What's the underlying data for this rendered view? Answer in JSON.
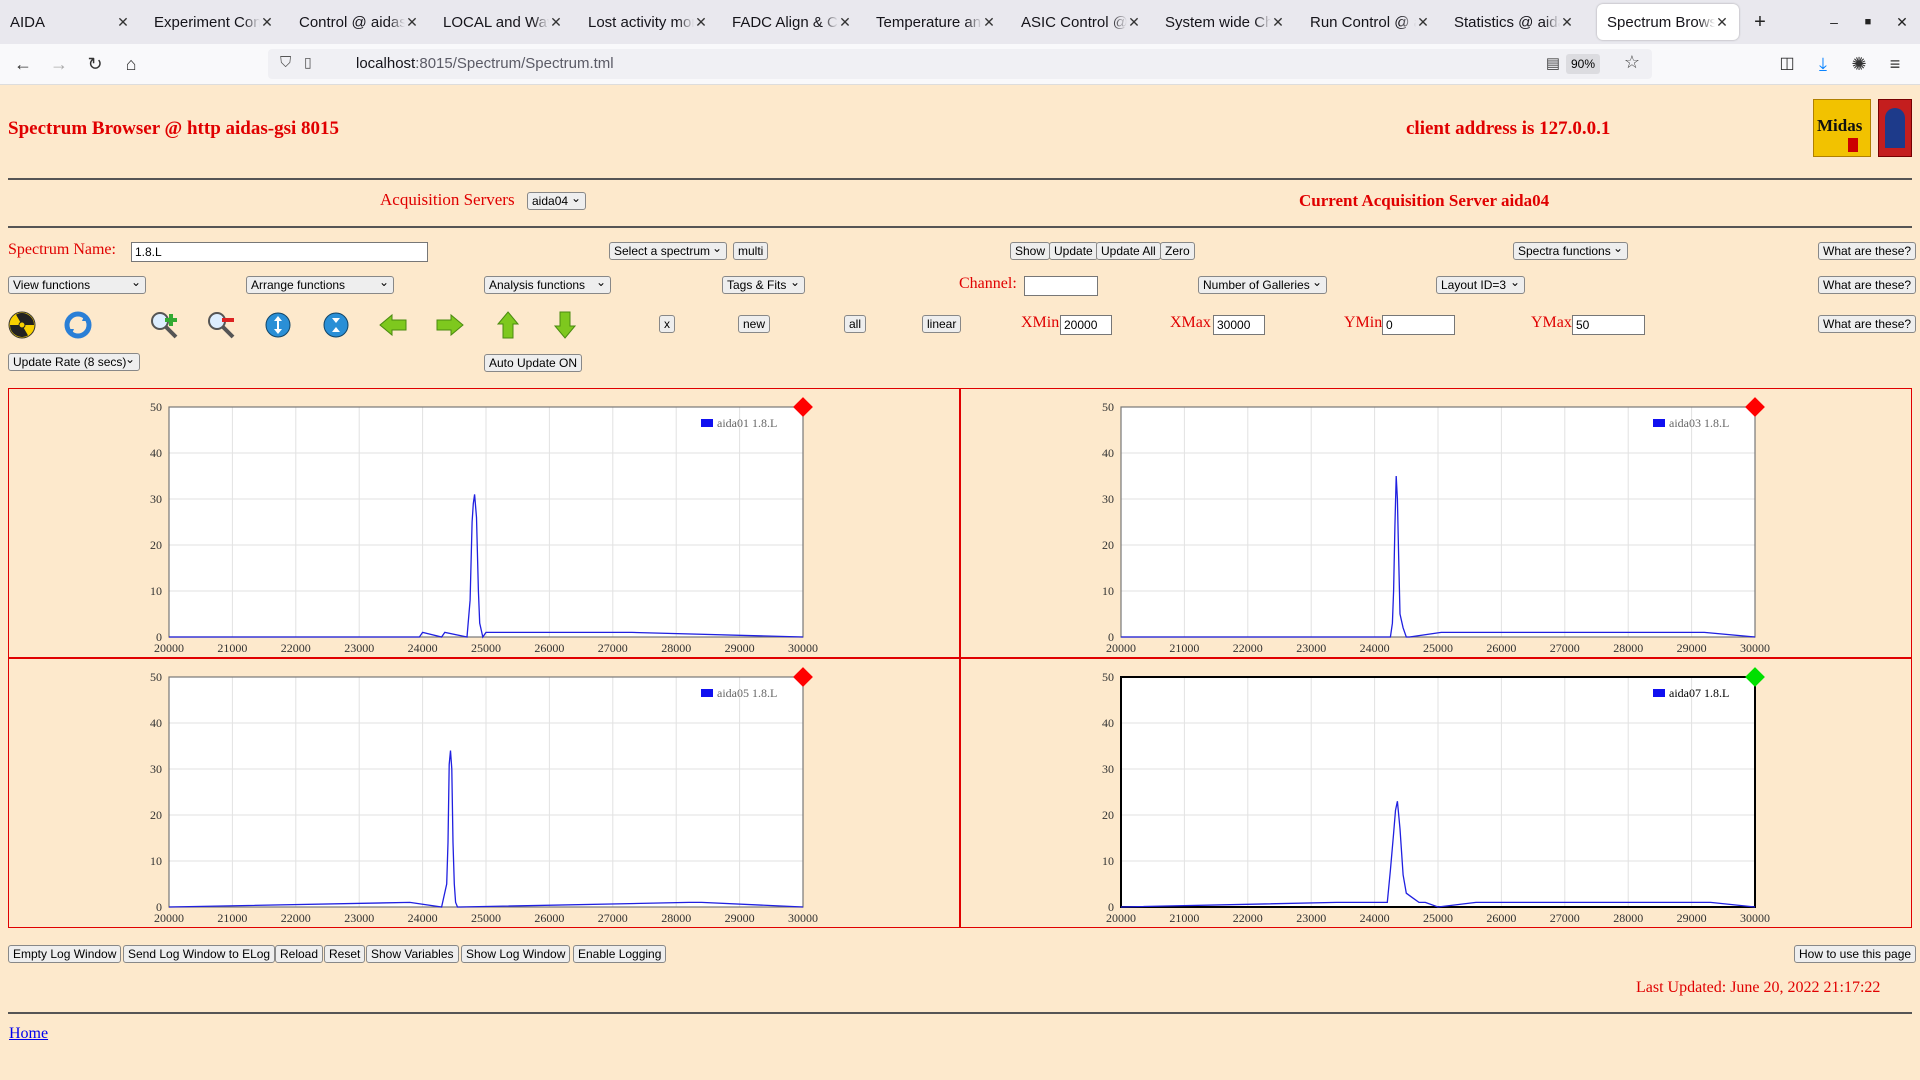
{
  "browser": {
    "tabs": [
      {
        "label": "AIDA",
        "active": false
      },
      {
        "label": "Experiment Control",
        "active": false
      },
      {
        "label": "Control @ aidas-gsi",
        "active": false
      },
      {
        "label": "LOCAL and Waveform",
        "active": false
      },
      {
        "label": "Lost activity monitor",
        "active": false
      },
      {
        "label": "FADC Align & Control",
        "active": false
      },
      {
        "label": "Temperature and Status",
        "active": false
      },
      {
        "label": "ASIC Control @ aidas",
        "active": false
      },
      {
        "label": "System wide Checks",
        "active": false
      },
      {
        "label": "Run Control @ aidas",
        "active": false
      },
      {
        "label": "Statistics @ aidas-gsi",
        "active": false
      },
      {
        "label": "Spectrum Browser",
        "active": true
      }
    ],
    "url_host": "localhost",
    "url_rest": ":8015/Spectrum/Spectrum.tml",
    "zoom": "90%"
  },
  "header": {
    "title": "Spectrum Browser @ http aidas-gsi 8015",
    "client_address": "client address is 127.0.0.1",
    "logo_text": "Midas"
  },
  "acq": {
    "label": "Acquisition Servers",
    "server_select": "aida04",
    "current": "Current Acquisition Server aida04"
  },
  "controls": {
    "spectrum_name_label": "Spectrum Name:",
    "spectrum_name_value": "1.8.L",
    "select_spectrum": "Select a spectrum",
    "multi": "multi",
    "show": "Show",
    "update": "Update",
    "update_all": "Update All",
    "zero": "Zero",
    "spectra_functions": "Spectra functions",
    "what1": "What are these?",
    "view_functions": "View functions",
    "arrange_functions": "Arrange functions",
    "analysis_functions": "Analysis functions",
    "tags_fits": "Tags & Fits",
    "channel_label": "Channel:",
    "channel_value": "",
    "number_of_galleries": "Number of Galleries",
    "layout": "Layout ID=3",
    "what2": "What are these?",
    "x_btn": "x",
    "new_btn": "new",
    "all_btn": "all",
    "linear_btn": "linear",
    "xmin_label": "XMin",
    "xmin_value": "20000",
    "xmax_label": "XMax",
    "xmax_value": "30000",
    "ymin_label": "YMin",
    "ymin_value": "0",
    "ymax_label": "YMax",
    "ymax_value": "50",
    "what3": "What are these?",
    "update_rate": "Update Rate (8 secs)",
    "auto_update": "Auto Update ON"
  },
  "icons": [
    "radiation-icon",
    "refresh-icon",
    "zoom-in-icon",
    "zoom-out-icon",
    "expand-y-icon",
    "compress-y-icon",
    "arrow-left-icon",
    "arrow-right-icon",
    "arrow-up-icon",
    "arrow-down-icon"
  ],
  "chart_data": [
    {
      "type": "line",
      "legend": "aida01 1.8.L",
      "status_color": "#ff0000",
      "xlim": [
        20000,
        30000
      ],
      "ylim": [
        0,
        50
      ],
      "xticks": [
        "20000",
        "21000",
        "22000",
        "23000",
        "24000",
        "25000",
        "26000",
        "27000",
        "28000",
        "29000",
        "30000"
      ],
      "yticks": [
        "0",
        "10",
        "20",
        "30",
        "40",
        "50"
      ],
      "x": [
        20000,
        23950,
        24000,
        24300,
        24350,
        24700,
        24750,
        24780,
        24800,
        24820,
        24850,
        24880,
        24900,
        24950,
        25000,
        25400,
        27300,
        30000
      ],
      "y": [
        0,
        0,
        1,
        0,
        1,
        0,
        8,
        25,
        29,
        31,
        26,
        10,
        3,
        0,
        1,
        1,
        1,
        0
      ]
    },
    {
      "type": "line",
      "legend": "aida03 1.8.L",
      "status_color": "#ff0000",
      "xlim": [
        20000,
        30000
      ],
      "ylim": [
        0,
        50
      ],
      "xticks": [
        "20000",
        "21000",
        "22000",
        "23000",
        "24000",
        "25000",
        "26000",
        "27000",
        "28000",
        "29000",
        "30000"
      ],
      "yticks": [
        "0",
        "10",
        "20",
        "30",
        "40",
        "50"
      ],
      "x": [
        20000,
        24250,
        24280,
        24300,
        24320,
        24340,
        24360,
        24380,
        24400,
        24450,
        24500,
        24550,
        25050,
        26000,
        27100,
        28600,
        29200,
        30000
      ],
      "y": [
        0,
        0,
        3,
        10,
        24,
        35,
        30,
        17,
        5,
        2,
        0,
        0,
        1,
        1,
        1,
        1,
        1,
        0
      ]
    },
    {
      "type": "line",
      "legend": "aida05 1.8.L",
      "status_color": "#ff0000",
      "xlim": [
        20000,
        30000
      ],
      "ylim": [
        0,
        50
      ],
      "xticks": [
        "20000",
        "21000",
        "22000",
        "23000",
        "24000",
        "25000",
        "26000",
        "27000",
        "28000",
        "29000",
        "30000"
      ],
      "yticks": [
        "0",
        "10",
        "20",
        "30",
        "40",
        "50"
      ],
      "x": [
        20000,
        23800,
        24300,
        24380,
        24400,
        24420,
        24440,
        24460,
        24480,
        24500,
        24520,
        24550,
        24600,
        28200,
        28400,
        30000
      ],
      "y": [
        0,
        1,
        0,
        5,
        14,
        31,
        34,
        30,
        14,
        5,
        1,
        0,
        0,
        1,
        1,
        0
      ]
    },
    {
      "type": "line",
      "legend": "aida07 1.8.L",
      "status_color": "#00e000",
      "xlim": [
        20000,
        30000
      ],
      "ylim": [
        0,
        50
      ],
      "xticks": [
        "20000",
        "21000",
        "22000",
        "23000",
        "24000",
        "25000",
        "26000",
        "27000",
        "28000",
        "29000",
        "30000"
      ],
      "yticks": [
        "0",
        "10",
        "20",
        "30",
        "40",
        "50"
      ],
      "x": [
        20000,
        23400,
        23800,
        24200,
        24250,
        24300,
        24330,
        24360,
        24400,
        24450,
        24500,
        24600,
        24700,
        24800,
        25000,
        25600,
        26200,
        27000,
        28000,
        28600,
        29300,
        30000
      ],
      "y": [
        0,
        1,
        1,
        1,
        8,
        16,
        21,
        23,
        17,
        7,
        3,
        2,
        1,
        1,
        0,
        1,
        1,
        1,
        1,
        1,
        1,
        0
      ]
    }
  ],
  "footer": {
    "empty_log": "Empty Log Window",
    "send_log": "Send Log Window to ELog",
    "reload": "Reload",
    "reset": "Reset",
    "show_vars": "Show Variables",
    "show_log": "Show Log Window",
    "enable_logging": "Enable Logging",
    "how_to": "How to use this page",
    "last_updated": "Last Updated: June 20, 2022 21:17:22",
    "home": "Home"
  }
}
